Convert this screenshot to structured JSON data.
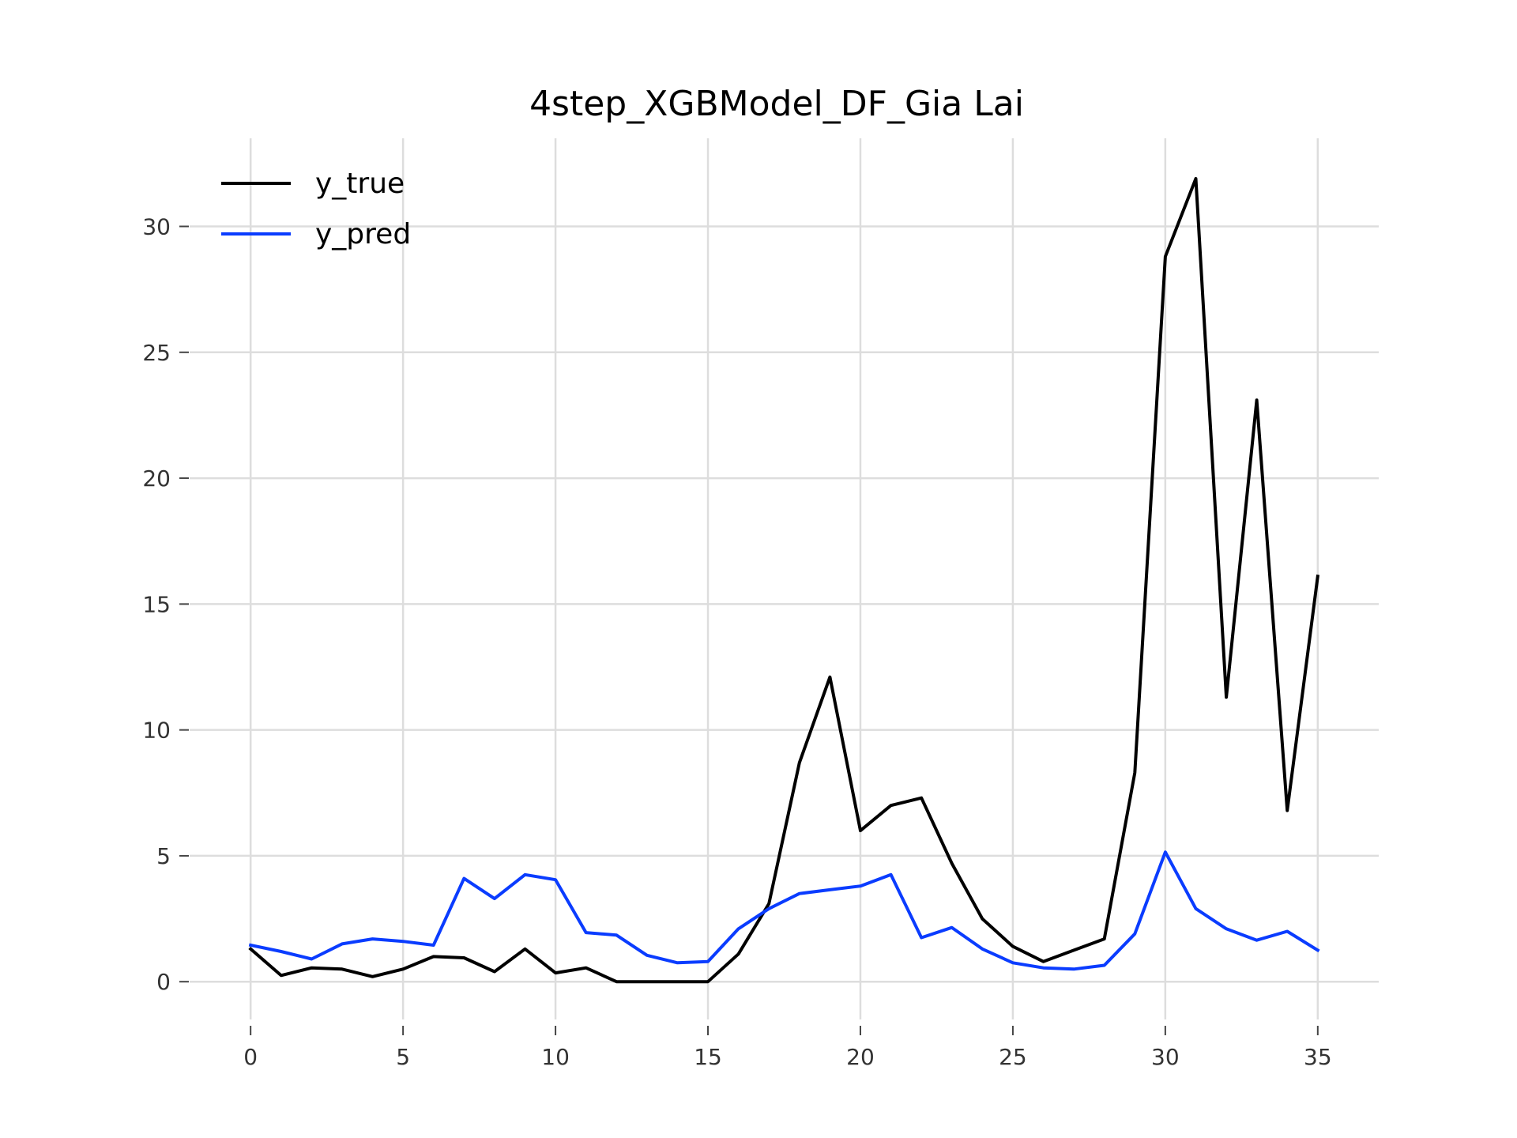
{
  "chart_data": {
    "type": "line",
    "title": "4step_XGBModel_DF_Gia Lai",
    "xlabel": "",
    "ylabel": "",
    "x": [
      0,
      1,
      2,
      3,
      4,
      5,
      6,
      7,
      8,
      9,
      10,
      11,
      12,
      13,
      14,
      15,
      16,
      17,
      18,
      19,
      20,
      21,
      22,
      23,
      24,
      25,
      26,
      27,
      28,
      29,
      30,
      31,
      32,
      33,
      34,
      35
    ],
    "xlim": [
      -2,
      37
    ],
    "ylim": [
      -1.5,
      33.5
    ],
    "xticks": [
      0,
      5,
      10,
      15,
      20,
      25,
      30,
      35
    ],
    "yticks": [
      0,
      5,
      10,
      15,
      20,
      25,
      30
    ],
    "xtick_labels": [
      "0",
      "5",
      "10",
      "15",
      "20",
      "25",
      "30",
      "35"
    ],
    "ytick_labels": [
      "0",
      "5",
      "10",
      "15",
      "20",
      "25",
      "30"
    ],
    "grid": true,
    "legend_position": "top-left",
    "series": [
      {
        "name": "y_true",
        "color": "#000000",
        "values": [
          1.3,
          0.25,
          0.55,
          0.5,
          0.2,
          0.5,
          1.0,
          0.95,
          0.4,
          1.3,
          0.35,
          0.55,
          0.0,
          0.0,
          0.0,
          0.0,
          1.1,
          3.1,
          8.7,
          12.1,
          6.0,
          7.0,
          7.3,
          4.7,
          2.5,
          1.4,
          0.8,
          1.25,
          1.7,
          8.3,
          28.8,
          31.9,
          11.3,
          23.1,
          6.8,
          16.1
        ]
      },
      {
        "name": "y_pred",
        "color": "#0a3cff",
        "values": [
          1.45,
          1.2,
          0.9,
          1.5,
          1.7,
          1.6,
          1.45,
          4.1,
          3.3,
          4.25,
          4.05,
          1.95,
          1.85,
          1.05,
          0.75,
          0.8,
          2.1,
          2.9,
          3.5,
          3.65,
          3.8,
          4.25,
          1.75,
          2.15,
          1.3,
          0.75,
          0.55,
          0.5,
          0.65,
          1.9,
          5.15,
          2.9,
          2.1,
          1.65,
          2.0,
          1.25
        ]
      }
    ]
  }
}
